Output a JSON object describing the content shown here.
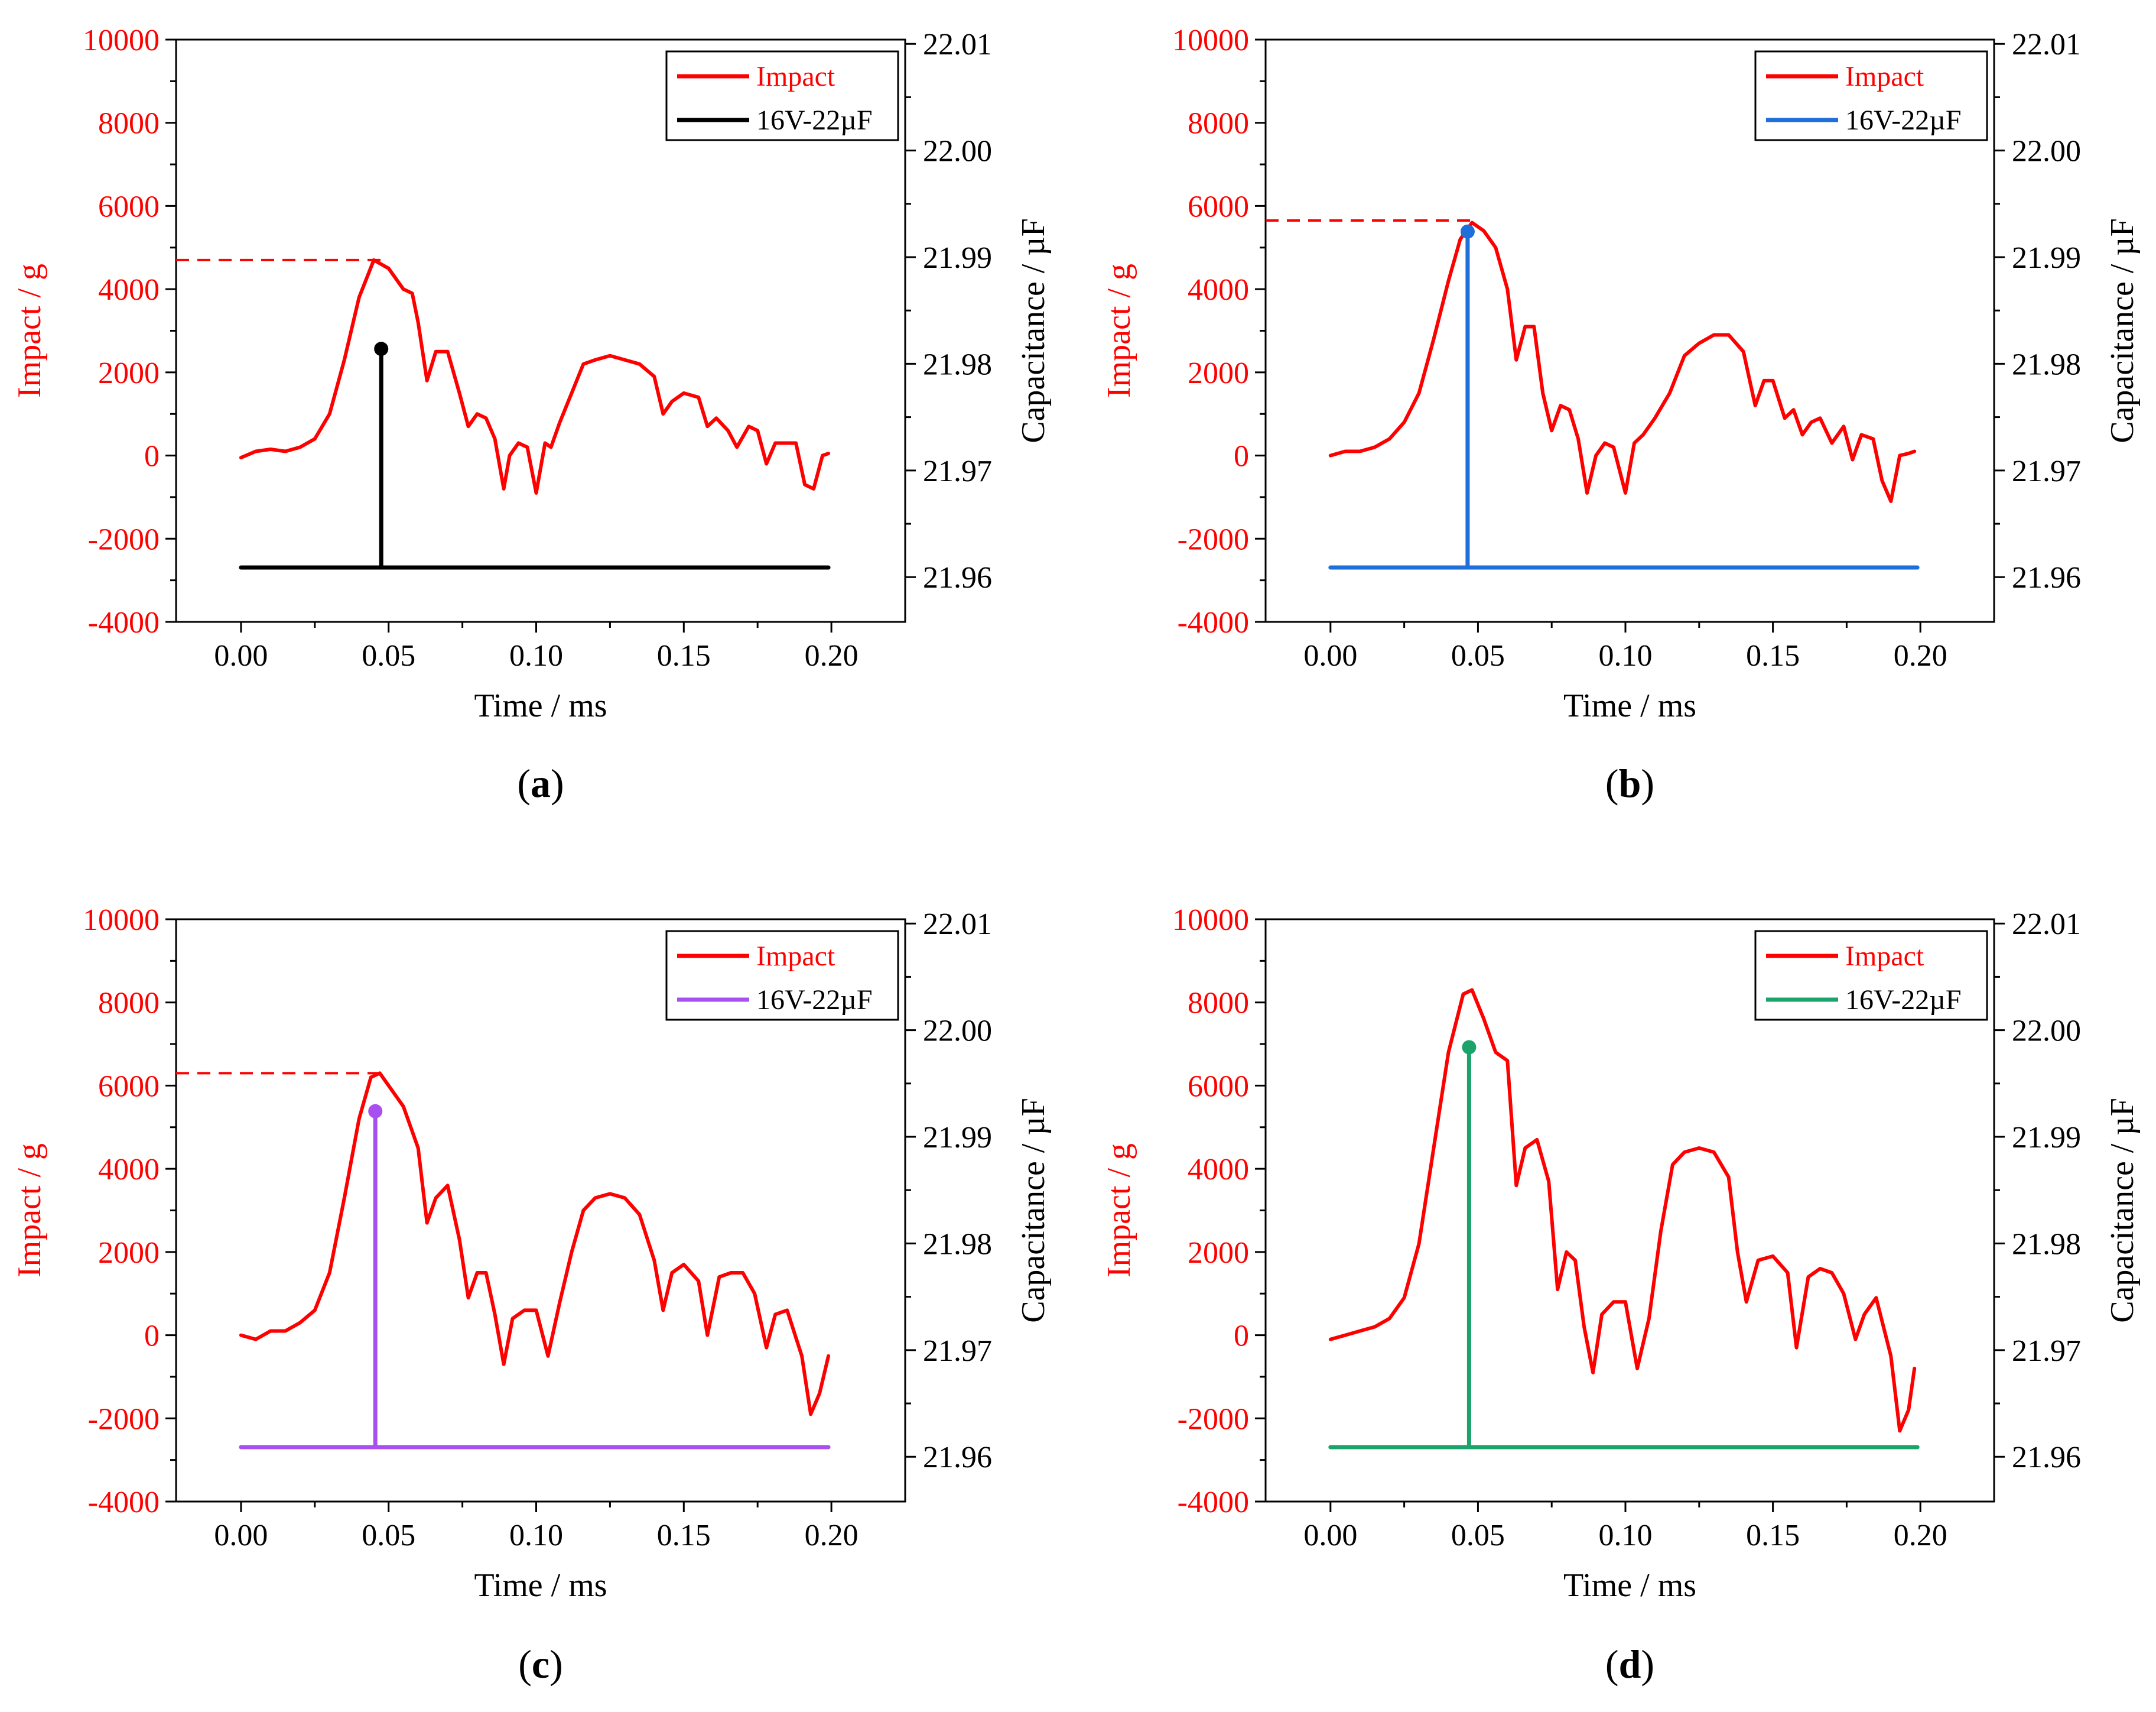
{
  "chart_data": [
    {
      "type": "line",
      "panel_label": "a",
      "xlabel": "Time / ms",
      "ylabel_left": "Impact / g",
      "ylabel_right": "Capacitance / µF",
      "xlim": [
        -0.022,
        0.225
      ],
      "xticks": [
        "0.00",
        "0.05",
        "0.10",
        "0.15",
        "0.20"
      ],
      "xtick_values": [
        0,
        0.05,
        0.1,
        0.15,
        0.2
      ],
      "ylim_left": [
        -4000,
        10000
      ],
      "yticks_left": [
        "-4000",
        "-2000",
        "0",
        "2000",
        "4000",
        "6000",
        "8000",
        "10000"
      ],
      "ylim_right": [
        21.9558,
        22.0104
      ],
      "yticks_right": [
        "21.96",
        "21.97",
        "21.98",
        "21.99",
        "22.00",
        "22.01"
      ],
      "legend": [
        "Impact",
        "16V-22µF"
      ],
      "series": [
        {
          "name": "Impact",
          "axis": "left",
          "color": "#ff0000",
          "x": [
            0,
            0.005,
            0.01,
            0.015,
            0.02,
            0.025,
            0.03,
            0.035,
            0.04,
            0.045,
            0.05,
            0.055,
            0.058,
            0.06,
            0.063,
            0.066,
            0.07,
            0.074,
            0.077,
            0.08,
            0.083,
            0.086,
            0.089,
            0.091,
            0.094,
            0.097,
            0.1,
            0.103,
            0.105,
            0.108,
            0.112,
            0.116,
            0.12,
            0.125,
            0.13,
            0.135,
            0.14,
            0.143,
            0.146,
            0.15,
            0.155,
            0.158,
            0.161,
            0.165,
            0.168,
            0.172,
            0.175,
            0.178,
            0.181,
            0.185,
            0.188,
            0.191,
            0.194,
            0.197,
            0.199
          ],
          "y": [
            -50,
            100,
            150,
            100,
            200,
            400,
            1000,
            2300,
            3800,
            4700,
            4500,
            4000,
            3900,
            3200,
            1800,
            2500,
            2500,
            1500,
            700,
            1000,
            900,
            400,
            -800,
            0,
            300,
            200,
            -900,
            300,
            200,
            800,
            1500,
            2200,
            2300,
            2400,
            2300,
            2200,
            1900,
            1000,
            1300,
            1500,
            1400,
            700,
            900,
            600,
            200,
            700,
            600,
            -200,
            300,
            300,
            300,
            -700,
            -800,
            0,
            50
          ]
        },
        {
          "name": "16V-22µF",
          "axis": "right",
          "color": "#000000",
          "x": [
            0,
            0.0475,
            0.0475,
            0.0475,
            0.199
          ],
          "y": [
            21.9609,
            21.9609,
            21.9814,
            21.9609,
            21.9609
          ]
        }
      ],
      "reference_line": {
        "axis": "left",
        "y": 4700,
        "x_end": 0.05,
        "color": "#ff0000",
        "style": "dashed"
      },
      "marker_point": {
        "axis": "right",
        "x": 0.0475,
        "y": 21.9814
      }
    },
    {
      "type": "line",
      "panel_label": "b",
      "xlabel": "Time / ms",
      "ylabel_left": "Impact / g",
      "ylabel_right": "Capacitance / µF",
      "xlim": [
        -0.022,
        0.225
      ],
      "xticks": [
        "0.00",
        "0.05",
        "0.10",
        "0.15",
        "0.20"
      ],
      "xtick_values": [
        0,
        0.05,
        0.1,
        0.15,
        0.2
      ],
      "ylim_left": [
        -4000,
        10000
      ],
      "yticks_left": [
        "-4000",
        "-2000",
        "0",
        "2000",
        "4000",
        "6000",
        "8000",
        "10000"
      ],
      "ylim_right": [
        21.9558,
        22.0104
      ],
      "yticks_right": [
        "21.96",
        "21.97",
        "21.98",
        "21.99",
        "22.00",
        "22.01"
      ],
      "legend": [
        "Impact",
        "16V-22µF"
      ],
      "series": [
        {
          "name": "Impact",
          "axis": "left",
          "color": "#ff0000",
          "x": [
            0,
            0.005,
            0.01,
            0.015,
            0.02,
            0.025,
            0.03,
            0.035,
            0.04,
            0.044,
            0.048,
            0.052,
            0.056,
            0.06,
            0.063,
            0.066,
            0.069,
            0.072,
            0.075,
            0.078,
            0.081,
            0.084,
            0.087,
            0.09,
            0.093,
            0.096,
            0.1,
            0.103,
            0.106,
            0.11,
            0.115,
            0.12,
            0.125,
            0.13,
            0.135,
            0.14,
            0.144,
            0.147,
            0.15,
            0.154,
            0.157,
            0.16,
            0.163,
            0.166,
            0.17,
            0.174,
            0.177,
            0.18,
            0.184,
            0.187,
            0.19,
            0.193,
            0.196,
            0.198
          ],
          "y": [
            0,
            100,
            100,
            200,
            400,
            800,
            1500,
            2800,
            4200,
            5200,
            5600,
            5400,
            5000,
            4000,
            2300,
            3100,
            3100,
            1500,
            600,
            1200,
            1100,
            400,
            -900,
            0,
            300,
            200,
            -900,
            300,
            500,
            900,
            1500,
            2400,
            2700,
            2900,
            2900,
            2500,
            1200,
            1800,
            1800,
            900,
            1100,
            500,
            800,
            900,
            300,
            700,
            -100,
            500,
            400,
            -600,
            -1100,
            0,
            50,
            100
          ]
        },
        {
          "name": "16V-22µF",
          "axis": "right",
          "color": "#1e6fd9",
          "x": [
            0,
            0.0465,
            0.0465,
            0.0465,
            0.199
          ],
          "y": [
            21.9609,
            21.9609,
            21.9924,
            21.9609,
            21.9609
          ]
        }
      ],
      "reference_line": {
        "axis": "left",
        "y": 5650,
        "x_end": 0.048,
        "color": "#ff0000",
        "style": "dashed"
      },
      "marker_point": {
        "axis": "right",
        "x": 0.0465,
        "y": 21.9924
      }
    },
    {
      "type": "line",
      "panel_label": "c",
      "xlabel": "Time / ms",
      "ylabel_left": "Impact / g",
      "ylabel_right": "Capacitance / µF",
      "xlim": [
        -0.022,
        0.225
      ],
      "xticks": [
        "0.00",
        "0.05",
        "0.10",
        "0.15",
        "0.20"
      ],
      "xtick_values": [
        0,
        0.05,
        0.1,
        0.15,
        0.2
      ],
      "ylim_left": [
        -4000,
        10000
      ],
      "yticks_left": [
        "-4000",
        "-2000",
        "0",
        "2000",
        "4000",
        "6000",
        "8000",
        "10000"
      ],
      "ylim_right": [
        21.9558,
        22.0104
      ],
      "yticks_right": [
        "21.96",
        "21.97",
        "21.98",
        "21.99",
        "22.00",
        "22.01"
      ],
      "legend": [
        "Impact",
        "16V-22µF"
      ],
      "series": [
        {
          "name": "Impact",
          "axis": "left",
          "color": "#ff0000",
          "x": [
            0,
            0.005,
            0.01,
            0.015,
            0.02,
            0.025,
            0.03,
            0.035,
            0.04,
            0.044,
            0.047,
            0.05,
            0.055,
            0.06,
            0.063,
            0.066,
            0.07,
            0.074,
            0.077,
            0.08,
            0.083,
            0.086,
            0.089,
            0.092,
            0.096,
            0.1,
            0.104,
            0.108,
            0.112,
            0.116,
            0.12,
            0.125,
            0.13,
            0.135,
            0.14,
            0.143,
            0.146,
            0.15,
            0.155,
            0.158,
            0.162,
            0.166,
            0.17,
            0.174,
            0.178,
            0.181,
            0.185,
            0.19,
            0.193,
            0.196,
            0.199
          ],
          "y": [
            0,
            -100,
            100,
            100,
            300,
            600,
            1500,
            3300,
            5200,
            6200,
            6300,
            6000,
            5500,
            4500,
            2700,
            3300,
            3600,
            2300,
            900,
            1500,
            1500,
            500,
            -700,
            400,
            600,
            600,
            -500,
            800,
            2000,
            3000,
            3300,
            3400,
            3300,
            2900,
            1800,
            600,
            1500,
            1700,
            1300,
            0,
            1400,
            1500,
            1500,
            1000,
            -300,
            500,
            600,
            -500,
            -1900,
            -1400,
            -500
          ]
        },
        {
          "name": "16V-22µF",
          "axis": "right",
          "color": "#a84ff0",
          "x": [
            0,
            0.0455,
            0.0455,
            0.0455,
            0.199
          ],
          "y": [
            21.9609,
            21.9609,
            21.9924,
            21.9609,
            21.9609
          ]
        }
      ],
      "reference_line": {
        "axis": "left",
        "y": 6300,
        "x_end": 0.047,
        "color": "#ff0000",
        "style": "dashed"
      },
      "marker_point": {
        "axis": "right",
        "x": 0.0455,
        "y": 21.9924
      }
    },
    {
      "type": "line",
      "panel_label": "d",
      "xlabel": "Time / ms",
      "ylabel_left": "Impact / g",
      "ylabel_right": "Capacitance / µF",
      "xlim": [
        -0.022,
        0.225
      ],
      "xticks": [
        "0.00",
        "0.05",
        "0.10",
        "0.15",
        "0.20"
      ],
      "xtick_values": [
        0,
        0.05,
        0.1,
        0.15,
        0.2
      ],
      "ylim_left": [
        -4000,
        10000
      ],
      "yticks_left": [
        "-4000",
        "-2000",
        "0",
        "2000",
        "4000",
        "6000",
        "8000",
        "10000"
      ],
      "ylim_right": [
        21.9558,
        22.0104
      ],
      "yticks_right": [
        "21.96",
        "21.97",
        "21.98",
        "21.99",
        "22.00",
        "22.01"
      ],
      "legend": [
        "Impact",
        "16V-22µF"
      ],
      "series": [
        {
          "name": "Impact",
          "axis": "left",
          "color": "#ff0000",
          "x": [
            0,
            0.005,
            0.01,
            0.015,
            0.02,
            0.025,
            0.03,
            0.035,
            0.04,
            0.045,
            0.048,
            0.052,
            0.056,
            0.06,
            0.063,
            0.066,
            0.07,
            0.074,
            0.077,
            0.08,
            0.083,
            0.086,
            0.089,
            0.092,
            0.096,
            0.1,
            0.104,
            0.108,
            0.112,
            0.116,
            0.12,
            0.125,
            0.13,
            0.135,
            0.138,
            0.141,
            0.145,
            0.15,
            0.155,
            0.158,
            0.162,
            0.166,
            0.17,
            0.174,
            0.178,
            0.181,
            0.185,
            0.19,
            0.193,
            0.196,
            0.198
          ],
          "y": [
            -100,
            0,
            100,
            200,
            400,
            900,
            2200,
            4500,
            6800,
            8200,
            8300,
            7600,
            6800,
            6600,
            3600,
            4500,
            4700,
            3700,
            1100,
            2000,
            1800,
            200,
            -900,
            500,
            800,
            800,
            -800,
            400,
            2500,
            4100,
            4400,
            4500,
            4400,
            3800,
            2000,
            800,
            1800,
            1900,
            1500,
            -300,
            1400,
            1600,
            1500,
            1000,
            -100,
            500,
            900,
            -500,
            -2300,
            -1800,
            -800
          ]
        },
        {
          "name": "16V-22µF",
          "axis": "right",
          "color": "#1aa36a",
          "x": [
            0,
            0.047,
            0.047,
            0.047,
            0.199
          ],
          "y": [
            21.9609,
            21.9609,
            21.9984,
            21.9609,
            21.9609
          ]
        }
      ],
      "reference_line": null,
      "marker_point": {
        "axis": "right",
        "x": 0.047,
        "y": 21.9984
      }
    }
  ]
}
